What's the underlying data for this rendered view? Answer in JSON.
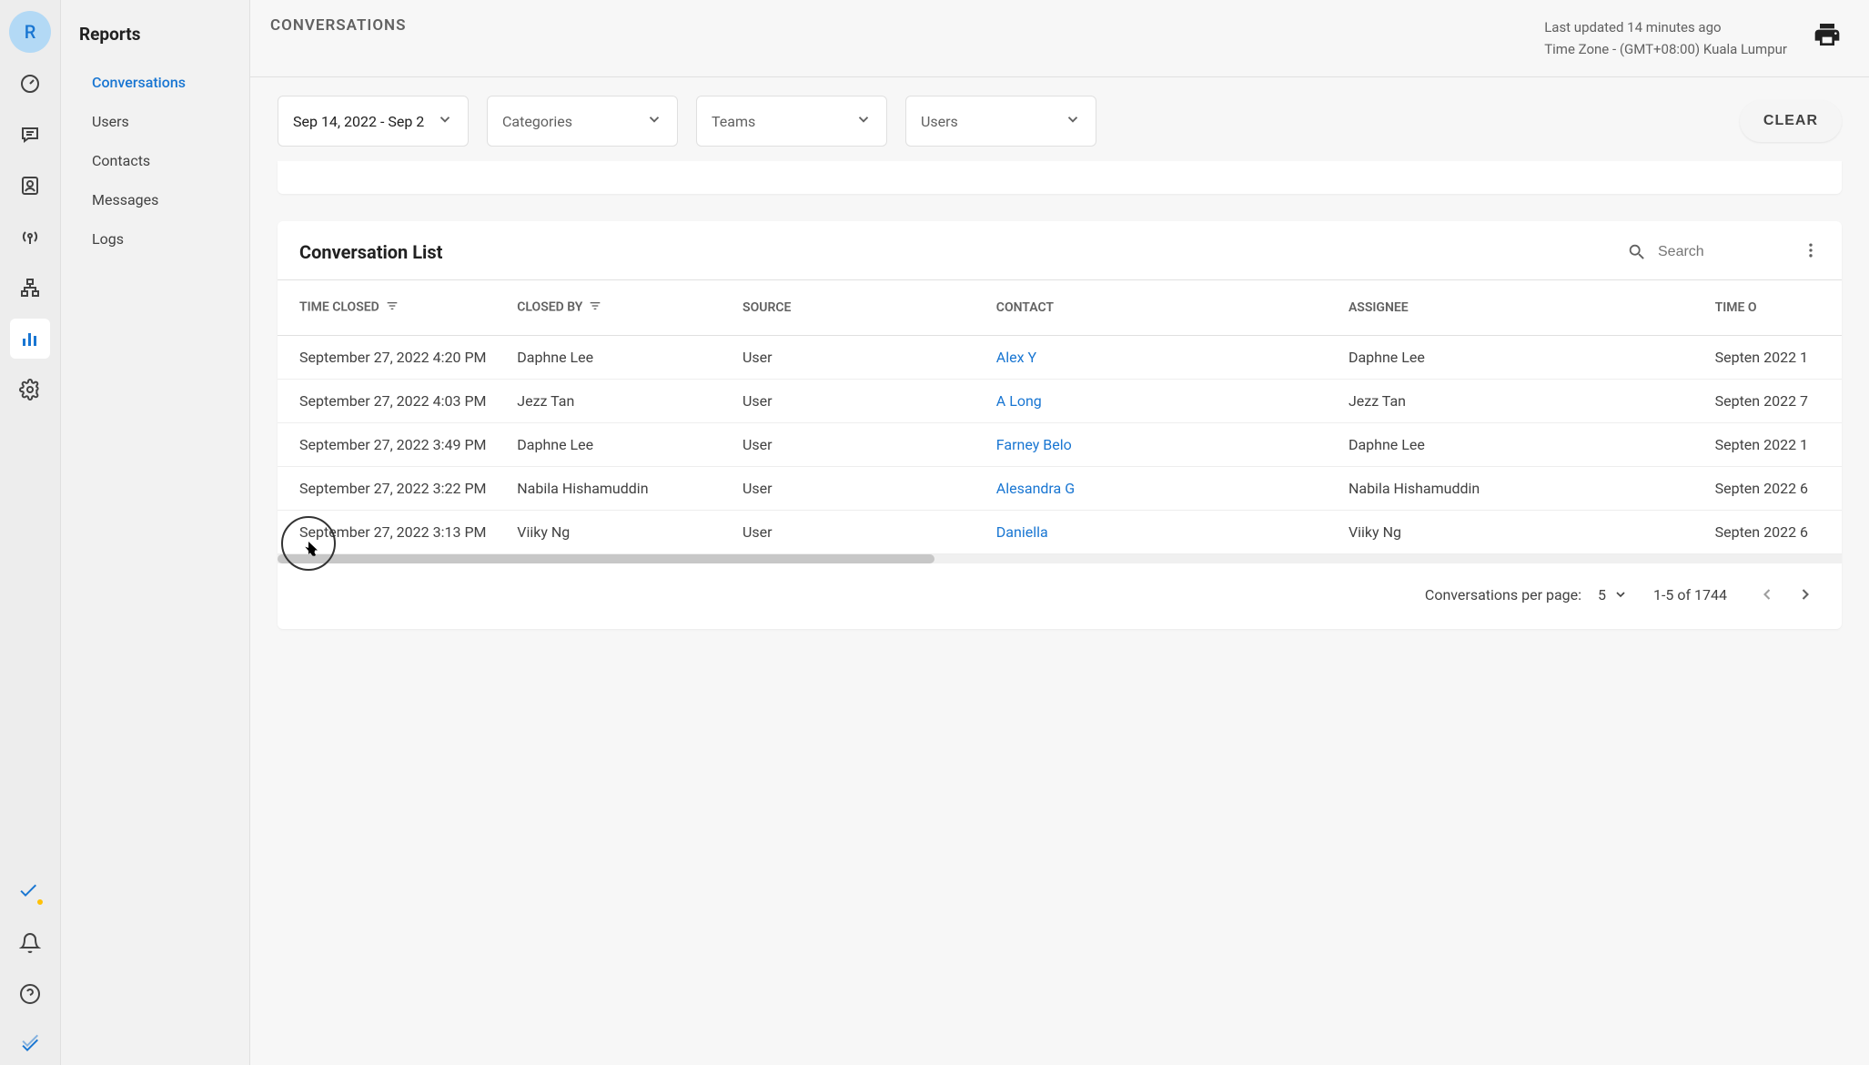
{
  "avatar_letter": "R",
  "subnav": {
    "title": "Reports",
    "items": [
      "Conversations",
      "Users",
      "Contacts",
      "Messages",
      "Logs"
    ],
    "active_index": 0
  },
  "topbar": {
    "title": "CONVERSATIONS",
    "last_updated": "Last updated 14 minutes ago",
    "timezone": "Time Zone - (GMT+08:00) Kuala Lumpur"
  },
  "filters": {
    "date_range": "Sep 14, 2022 - Sep 2",
    "categories_label": "Categories",
    "teams_label": "Teams",
    "users_label": "Users",
    "clear_label": "CLEAR"
  },
  "card": {
    "title": "Conversation List",
    "search_placeholder": "Search"
  },
  "table": {
    "columns": [
      "TIME CLOSED",
      "CLOSED BY",
      "SOURCE",
      "CONTACT",
      "ASSIGNEE",
      "TIME O"
    ],
    "rows": [
      {
        "time_closed": "September 27, 2022 4:20 PM",
        "closed_by": "Daphne Lee",
        "source": "User",
        "contact": "Alex Y",
        "assignee": "Daphne Lee",
        "time_opened": "Septen 2022 1"
      },
      {
        "time_closed": "September 27, 2022 4:03 PM",
        "closed_by": "Jezz Tan",
        "source": "User",
        "contact": "A Long",
        "assignee": "Jezz Tan",
        "time_opened": "Septen 2022 7"
      },
      {
        "time_closed": "September 27, 2022 3:49 PM",
        "closed_by": "Daphne Lee",
        "source": "User",
        "contact": "Farney Belo",
        "assignee": "Daphne Lee",
        "time_opened": "Septen 2022 1"
      },
      {
        "time_closed": "September 27, 2022 3:22 PM",
        "closed_by": "Nabila Hishamuddin",
        "source": "User",
        "contact": "Alesandra G",
        "assignee": "Nabila Hishamuddin",
        "time_opened": "Septen 2022 6"
      },
      {
        "time_closed": "September 27, 2022 3:13 PM",
        "closed_by": "Viiky Ng",
        "source": "User",
        "contact": "Daniella",
        "assignee": "Viiky Ng",
        "time_opened": "Septen 2022 6"
      }
    ]
  },
  "pagination": {
    "per_page_label": "Conversations per page:",
    "per_page_value": "5",
    "range": "1-5 of 1744"
  },
  "colors": {
    "link": "#1976d2",
    "avatar_bg": "#b3d9f5",
    "rail_bg": "#ededed",
    "subnav_bg": "#f2f2f2",
    "main_bg": "#f7f7f7"
  }
}
